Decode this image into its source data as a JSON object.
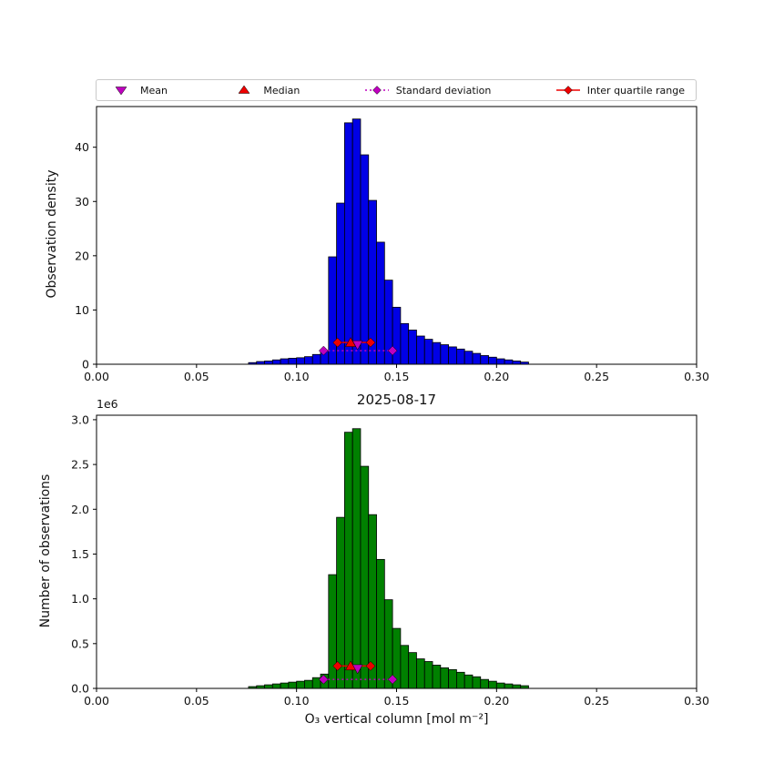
{
  "colors": {
    "magenta": "#bf00bf",
    "red": "#ee0000",
    "blue": "#0000e6",
    "green": "#008000",
    "bar_edge": "#000000"
  },
  "legend": {
    "items": [
      {
        "label": "Mean",
        "marker": "triangle-down",
        "color": "#bf00bf",
        "line": "none"
      },
      {
        "label": "Median",
        "marker": "triangle-up",
        "color": "#ee0000",
        "line": "none"
      },
      {
        "label": "Standard deviation",
        "marker": "diamond",
        "color": "#bf00bf",
        "line": "dotted"
      },
      {
        "label": "Inter quartile range",
        "marker": "diamond",
        "color": "#ee0000",
        "line": "solid"
      }
    ]
  },
  "chart_data": [
    {
      "type": "bar",
      "subtype": "histogram",
      "title": "",
      "ylabel": "Observation density",
      "bar_color": "#0000e6",
      "bin_start": 0.076,
      "bin_width": 0.004,
      "values": [
        0.3,
        0.5,
        0.6,
        0.8,
        1.0,
        1.1,
        1.2,
        1.4,
        1.8,
        2.5,
        19.8,
        29.7,
        44.5,
        45.2,
        38.6,
        30.2,
        22.5,
        15.5,
        10.5,
        7.5,
        6.3,
        5.2,
        4.6,
        4.0,
        3.6,
        3.2,
        2.8,
        2.4,
        2.0,
        1.6,
        1.3,
        1.0,
        0.8,
        0.6,
        0.4
      ],
      "xlim": [
        0.0,
        0.3
      ],
      "ylim": [
        0,
        47.5
      ],
      "xticks": [
        0.0,
        0.05,
        0.1,
        0.15,
        0.2,
        0.25,
        0.3
      ],
      "xtick_labels": [
        "0.00",
        "0.05",
        "0.10",
        "0.15",
        "0.20",
        "0.25",
        "0.30"
      ],
      "yticks": [
        0,
        10,
        20,
        30,
        40
      ],
      "ytick_labels": [
        "0",
        "10",
        "20",
        "30",
        "40"
      ],
      "stats": {
        "mean": 0.1305,
        "median": 0.127,
        "std_lo": 0.1135,
        "std_hi": 0.148,
        "q1": 0.1205,
        "q3": 0.137,
        "mean_y": 3.6,
        "median_y": 4.0,
        "std_y": 2.5,
        "iqr_y": 4.0
      }
    },
    {
      "type": "bar",
      "subtype": "histogram",
      "title": "2025-08-17",
      "xlabel": "O₃ vertical column [mol m⁻²]",
      "ylabel": "Number of observations",
      "offset_text": "1e6",
      "unit_scale": "1e6",
      "bar_color": "#008000",
      "bin_start": 0.076,
      "bin_width": 0.004,
      "values": [
        0.02,
        0.03,
        0.04,
        0.05,
        0.06,
        0.07,
        0.08,
        0.09,
        0.12,
        0.16,
        1.27,
        1.91,
        2.86,
        2.9,
        2.48,
        1.94,
        1.44,
        0.99,
        0.67,
        0.48,
        0.4,
        0.33,
        0.3,
        0.26,
        0.23,
        0.21,
        0.18,
        0.15,
        0.13,
        0.1,
        0.08,
        0.06,
        0.05,
        0.04,
        0.03
      ],
      "xlim": [
        0.0,
        0.3
      ],
      "ylim": [
        0,
        3.05
      ],
      "xticks": [
        0.0,
        0.05,
        0.1,
        0.15,
        0.2,
        0.25,
        0.3
      ],
      "xtick_labels": [
        "0.00",
        "0.05",
        "0.10",
        "0.15",
        "0.20",
        "0.25",
        "0.30"
      ],
      "yticks": [
        0,
        0.5,
        1.0,
        1.5,
        2.0,
        2.5,
        3.0
      ],
      "ytick_labels": [
        "0.0",
        "0.5",
        "1.0",
        "1.5",
        "2.0",
        "2.5",
        "3.0"
      ],
      "stats": {
        "mean": 0.1305,
        "median": 0.127,
        "std_lo": 0.1135,
        "std_hi": 0.148,
        "q1": 0.1205,
        "q3": 0.137,
        "mean_y": 0.22,
        "median_y": 0.25,
        "std_y": 0.1,
        "iqr_y": 0.25
      }
    }
  ]
}
